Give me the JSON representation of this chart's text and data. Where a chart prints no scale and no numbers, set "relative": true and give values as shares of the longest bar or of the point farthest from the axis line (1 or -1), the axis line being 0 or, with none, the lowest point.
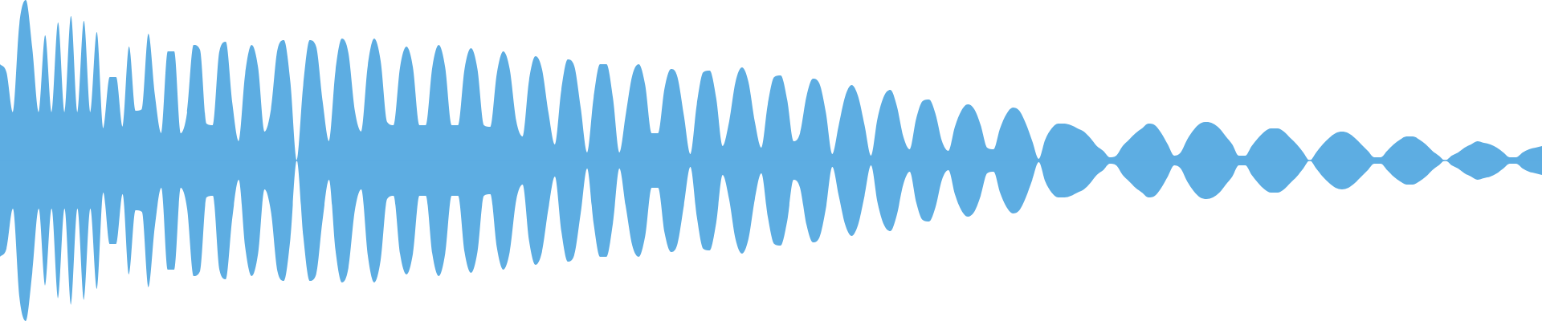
{
  "chart_data": {
    "type": "area",
    "relative": true,
    "ref_lines": [
      {
        "axis": "y",
        "value": 0,
        "color": "#5dade2"
      }
    ],
    "categories": [
      null,
      null,
      null,
      null,
      null,
      null,
      null,
      null,
      null,
      null,
      null,
      null,
      null,
      null,
      null,
      null,
      null,
      null,
      null,
      null,
      null,
      null,
      null,
      null,
      null,
      null,
      null,
      null,
      null,
      null,
      null,
      null,
      null,
      null,
      null,
      null,
      null,
      null,
      null,
      null,
      null,
      null,
      null,
      null,
      null,
      null,
      null,
      null,
      null,
      null,
      null,
      null,
      null,
      null,
      null,
      null,
      null,
      null,
      null,
      null,
      null,
      null,
      null,
      null,
      null,
      null,
      null,
      null,
      null,
      null,
      null,
      null,
      null,
      null,
      null,
      null,
      null,
      null,
      null,
      null,
      null,
      null,
      null,
      null,
      null,
      null,
      null,
      null,
      null,
      null,
      null,
      null,
      null,
      null,
      null,
      null,
      null,
      null,
      null,
      null,
      null,
      null,
      null,
      null,
      null,
      null,
      null,
      null,
      null,
      null,
      null,
      null,
      null,
      null,
      null,
      null,
      null,
      null,
      null,
      null,
      null,
      null,
      null,
      null,
      null,
      null,
      null,
      null,
      null,
      null,
      null,
      null,
      null,
      null,
      null,
      null,
      null,
      null,
      null,
      null,
      null,
      null,
      null,
      null,
      null,
      null,
      null,
      null,
      null,
      null,
      null,
      null,
      null,
      null,
      null,
      null,
      null,
      null,
      null,
      null,
      null,
      null,
      null,
      null,
      null,
      null,
      null,
      null,
      null,
      null,
      null,
      null,
      null,
      null,
      null,
      null,
      null,
      null,
      null,
      null,
      null,
      null,
      null,
      null,
      null,
      null,
      null,
      null,
      null,
      null,
      null,
      null,
      null,
      null,
      null,
      null,
      null,
      null,
      null,
      null,
      null,
      null,
      null,
      null,
      null,
      null,
      null,
      null,
      null,
      null,
      null,
      null,
      null,
      null,
      null,
      null,
      null,
      null,
      null,
      null,
      null,
      null,
      null,
      null,
      null,
      null,
      null,
      null,
      null,
      null,
      null,
      null,
      null,
      null,
      null,
      null,
      null,
      null,
      null,
      null
    ],
    "series": [
      {
        "color": "#5dade2",
        "values": [
          0.6,
          0.55,
          0.3,
          0.85,
          1,
          0.7,
          0.3,
          0.78,
          0.3,
          0.86,
          0.3,
          0.9,
          0.3,
          0.87,
          0.3,
          0.8,
          0.2,
          0.52,
          0.52,
          0.21,
          0.71,
          0.31,
          0.32,
          0.79,
          0.41,
          0.17,
          0.68,
          0.68,
          0.17,
          0.3,
          0.72,
          0.69,
          0.23,
          0.22,
          0.68,
          0.74,
          0.36,
          0.12,
          0.54,
          0.72,
          0.58,
          0.18,
          0.32,
          0.69,
          0.75,
          0.49,
          0,
          0.47,
          0.75,
          0.71,
          0.37,
          0.12,
          0.56,
          0.76,
          0.67,
          0.31,
          0.18,
          0.59,
          0.76,
          0.62,
          0.24,
          0.22,
          0.58,
          0.71,
          0.58,
          0.22,
          0.22,
          0.58,
          0.72,
          0.58,
          0.22,
          0.22,
          0.57,
          0.7,
          0.57,
          0.22,
          0.21,
          0.54,
          0.68,
          0.57,
          0.25,
          0.15,
          0.5,
          0.65,
          0.57,
          0.3,
          0.1,
          0.44,
          0.63,
          0.59,
          0.33,
          0.05,
          0.39,
          0.6,
          0.6,
          0.39,
          0.05,
          0.29,
          0.53,
          0.6,
          0.47,
          0.17,
          0.17,
          0.45,
          0.57,
          0.52,
          0.28,
          0.04,
          0.35,
          0.55,
          0.56,
          0.39,
          0.09,
          0.24,
          0.49,
          0.58,
          0.49,
          0.24,
          0.08,
          0.35,
          0.52,
          0.53,
          0.38,
          0.12,
          0.17,
          0.4,
          0.51,
          0.48,
          0.3,
          0.04,
          0.22,
          0.4,
          0.47,
          0.4,
          0.22,
          0.03,
          0.26,
          0.4,
          0.44,
          0.34,
          0.15,
          0.07,
          0.26,
          0.37,
          0.38,
          0.29,
          0.12,
          0.06,
          0.21,
          0.31,
          0.35,
          0.32,
          0.22,
          0.08,
          0.07,
          0.2,
          0.29,
          0.33,
          0.31,
          0.23,
          0.12,
          0.01,
          0.13,
          0.2,
          0.23,
          0.23,
          0.22,
          0.2,
          0.18,
          0.14,
          0.09,
          0.06,
          0.02,
          0.03,
          0.09,
          0.13,
          0.17,
          0.2,
          0.23,
          0.22,
          0.17,
          0.1,
          0.03,
          0.05,
          0.13,
          0.19,
          0.23,
          0.24,
          0.23,
          0.2,
          0.15,
          0.1,
          0.03,
          0.03,
          0.09,
          0.14,
          0.18,
          0.2,
          0.2,
          0.18,
          0.14,
          0.1,
          0.05,
          0,
          0.05,
          0.1,
          0.14,
          0.17,
          0.18,
          0.17,
          0.14,
          0.1,
          0.06,
          0.02,
          0.02,
          0.06,
          0.1,
          0.13,
          0.15,
          0.15,
          0.13,
          0.1,
          0.06,
          0.03,
          0,
          0.03,
          0.05,
          0.08,
          0.1,
          0.12,
          0.11,
          0.1,
          0.08,
          0.05,
          0.02,
          0.02,
          0.05,
          0.07,
          0.08,
          0.09
        ]
      },
      {
        "color": "#5dade2",
        "values": [
          -0.6,
          -0.55,
          -0.3,
          -0.85,
          -1,
          -0.7,
          -0.3,
          -0.78,
          -0.3,
          -0.86,
          -0.3,
          -0.9,
          -0.3,
          -0.87,
          -0.3,
          -0.8,
          -0.2,
          -0.52,
          -0.52,
          -0.21,
          -0.71,
          -0.31,
          -0.32,
          -0.79,
          -0.41,
          -0.17,
          -0.68,
          -0.68,
          -0.17,
          -0.3,
          -0.72,
          -0.69,
          -0.23,
          -0.22,
          -0.68,
          -0.74,
          -0.36,
          -0.12,
          -0.54,
          -0.72,
          -0.58,
          -0.18,
          -0.32,
          -0.69,
          -0.75,
          -0.49,
          0,
          -0.47,
          -0.75,
          -0.71,
          -0.37,
          -0.12,
          -0.56,
          -0.76,
          -0.67,
          -0.31,
          -0.18,
          -0.59,
          -0.76,
          -0.62,
          -0.24,
          -0.22,
          -0.58,
          -0.71,
          -0.58,
          -0.22,
          -0.22,
          -0.58,
          -0.72,
          -0.58,
          -0.22,
          -0.22,
          -0.57,
          -0.7,
          -0.57,
          -0.22,
          -0.21,
          -0.54,
          -0.68,
          -0.57,
          -0.25,
          -0.15,
          -0.5,
          -0.65,
          -0.57,
          -0.3,
          -0.1,
          -0.44,
          -0.63,
          -0.59,
          -0.33,
          -0.05,
          -0.39,
          -0.6,
          -0.6,
          -0.39,
          -0.05,
          -0.29,
          -0.53,
          -0.6,
          -0.47,
          -0.17,
          -0.17,
          -0.45,
          -0.57,
          -0.52,
          -0.28,
          -0.04,
          -0.35,
          -0.55,
          -0.56,
          -0.39,
          -0.09,
          -0.24,
          -0.49,
          -0.58,
          -0.49,
          -0.24,
          -0.08,
          -0.35,
          -0.52,
          -0.53,
          -0.38,
          -0.12,
          -0.17,
          -0.4,
          -0.51,
          -0.48,
          -0.3,
          -0.04,
          -0.22,
          -0.4,
          -0.47,
          -0.4,
          -0.22,
          -0.03,
          -0.26,
          -0.4,
          -0.44,
          -0.34,
          -0.15,
          -0.07,
          -0.26,
          -0.37,
          -0.38,
          -0.29,
          -0.12,
          -0.06,
          -0.21,
          -0.31,
          -0.35,
          -0.32,
          -0.22,
          -0.08,
          -0.07,
          -0.2,
          -0.29,
          -0.33,
          -0.31,
          -0.23,
          -0.12,
          -0.01,
          -0.13,
          -0.2,
          -0.23,
          -0.23,
          -0.22,
          -0.2,
          -0.18,
          -0.14,
          -0.09,
          -0.06,
          -0.02,
          -0.03,
          -0.09,
          -0.13,
          -0.17,
          -0.2,
          -0.23,
          -0.22,
          -0.17,
          -0.1,
          -0.03,
          -0.05,
          -0.13,
          -0.19,
          -0.23,
          -0.24,
          -0.23,
          -0.2,
          -0.15,
          -0.1,
          -0.03,
          -0.03,
          -0.09,
          -0.14,
          -0.18,
          -0.2,
          -0.2,
          -0.18,
          -0.14,
          -0.1,
          -0.05,
          0,
          -0.05,
          -0.1,
          -0.14,
          -0.17,
          -0.18,
          -0.17,
          -0.14,
          -0.1,
          -0.06,
          -0.02,
          -0.02,
          -0.06,
          -0.1,
          -0.13,
          -0.15,
          -0.15,
          -0.13,
          -0.1,
          -0.06,
          -0.03,
          0,
          -0.03,
          -0.05,
          -0.08,
          -0.1,
          -0.12,
          -0.11,
          -0.1,
          -0.08,
          -0.05,
          -0.02,
          -0.02,
          -0.05,
          -0.07,
          -0.08,
          -0.09
        ]
      }
    ]
  }
}
